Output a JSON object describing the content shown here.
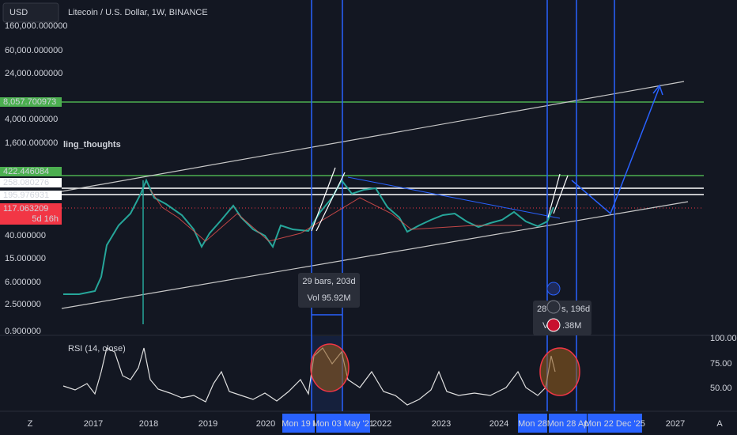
{
  "header": {
    "currency": "USD",
    "symbol": "Litecoin / U.S. Dollar, 1W, BINANCE"
  },
  "price_axis": [
    "160,000.000000",
    "60,000.000000",
    "24,000.000000",
    "4,000.000000",
    "1,600.000000",
    "40.000000",
    "15.000000",
    "6.000000",
    "2.500000",
    "0.900000"
  ],
  "green_tags": [
    "8,057.700973",
    "422.446084"
  ],
  "white_tags": [
    "258.080276",
    "195.976931"
  ],
  "last_price": {
    "price": "117.063209",
    "countdown": "5d 16h"
  },
  "overlay_text": "ling_thoughts",
  "measure_1": {
    "bars": "29 bars, 203d",
    "vol": "Vol 95.92M"
  },
  "measure_2": {
    "bars_left": "28",
    "bars_right": "s, 196d",
    "vol_left": "V",
    "vol_right": ".38M"
  },
  "rsi": {
    "label": "RSI (14, close)",
    "ticks": [
      "100.00",
      "75.00",
      "50.00"
    ]
  },
  "time_axis": [
    "2017",
    "2018",
    "2019",
    "2020",
    "2022",
    "2023",
    "2024",
    "2027"
  ],
  "time_tags": [
    "Mon 19 I",
    "Mon 03 May '21",
    "Mon 28",
    "Mon 28 Ap",
    "Mon 22 Dec '25"
  ],
  "corner": {
    "left": "Z",
    "right": "A"
  }
}
